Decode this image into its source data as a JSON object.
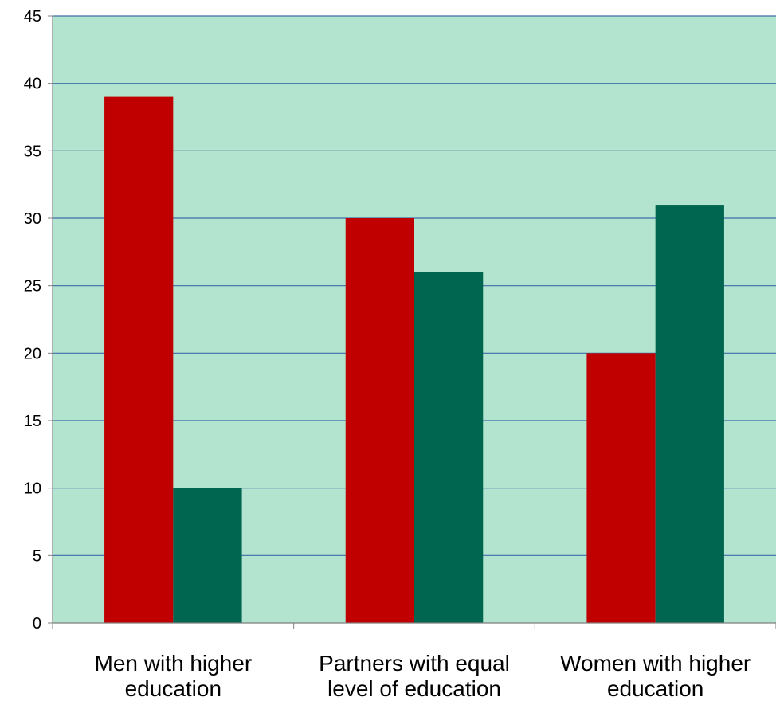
{
  "chart_data": {
    "type": "bar",
    "categories": [
      [
        "Men with higher",
        "education"
      ],
      [
        "Partners with equal",
        "level of education"
      ],
      [
        "Women with higher",
        "education"
      ]
    ],
    "series": [
      {
        "values": [
          39,
          30,
          20
        ],
        "color": "#c00000"
      },
      {
        "values": [
          10,
          26,
          31
        ],
        "color": "#006650"
      }
    ],
    "ylim": [
      0,
      45
    ],
    "yticks": [
      0,
      5,
      10,
      15,
      20,
      25,
      30,
      35,
      40,
      45
    ],
    "grid": true,
    "plot_background": "#b3e4cf",
    "gridline_color": "#3d6fa8",
    "legend": "none"
  }
}
